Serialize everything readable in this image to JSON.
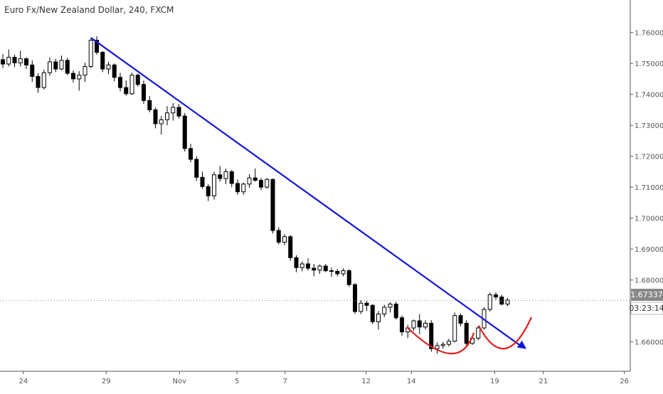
{
  "chart_data": {
    "type": "candlestick",
    "title": "Euro Fx/New Zealand Dollar, 240, FXCM",
    "timeframe_minutes": 240,
    "x_tick_labels": [
      "24",
      "29",
      "Nov",
      "5",
      "7",
      "12",
      "14",
      "19",
      "21",
      "26"
    ],
    "y_tick_labels": [
      "1.76000",
      "1.75000",
      "1.74000",
      "1.73000",
      "1.72000",
      "1.71000",
      "1.70000",
      "1.69000",
      "1.68000",
      "1.67000",
      "1.66000"
    ],
    "ylim": [
      1.6505,
      1.7705
    ],
    "current_price": "1.67337",
    "countdown": "03:23:14",
    "grid": false,
    "legend": "none",
    "series": [
      {
        "ohlc": [
          [
            1.7512,
            1.753,
            1.7485,
            1.7498
          ],
          [
            1.7498,
            1.7545,
            1.749,
            1.752
          ],
          [
            1.752,
            1.7528,
            1.7488,
            1.7502
          ],
          [
            1.7502,
            1.7541,
            1.749,
            1.7515
          ],
          [
            1.7515,
            1.752,
            1.7482,
            1.7495
          ],
          [
            1.7495,
            1.751,
            1.744,
            1.7458
          ],
          [
            1.7458,
            1.7468,
            1.7405,
            1.7422
          ],
          [
            1.7422,
            1.748,
            1.7415,
            1.747
          ],
          [
            1.747,
            1.752,
            1.746,
            1.7505
          ],
          [
            1.7505,
            1.7515,
            1.7472,
            1.7482
          ],
          [
            1.7482,
            1.7525,
            1.7478,
            1.751
          ],
          [
            1.751,
            1.7518,
            1.7462,
            1.7468
          ],
          [
            1.7468,
            1.7478,
            1.7438,
            1.745
          ],
          [
            1.745,
            1.7475,
            1.7412,
            1.7462
          ],
          [
            1.7462,
            1.7502,
            1.744,
            1.749
          ],
          [
            1.749,
            1.7582,
            1.7485,
            1.7575
          ],
          [
            1.7575,
            1.7588,
            1.7528,
            1.7536
          ],
          [
            1.7536,
            1.754,
            1.7472,
            1.7482
          ],
          [
            1.7482,
            1.7505,
            1.7465,
            1.7495
          ],
          [
            1.7495,
            1.75,
            1.7442,
            1.7455
          ],
          [
            1.7455,
            1.747,
            1.741,
            1.7422
          ],
          [
            1.7422,
            1.7445,
            1.7396,
            1.7402
          ],
          [
            1.7402,
            1.747,
            1.7398,
            1.7462
          ],
          [
            1.7462,
            1.7468,
            1.7425,
            1.7432
          ],
          [
            1.7432,
            1.7445,
            1.737,
            1.738
          ],
          [
            1.738,
            1.7395,
            1.7342,
            1.735
          ],
          [
            1.735,
            1.7358,
            1.729,
            1.7305
          ],
          [
            1.7305,
            1.733,
            1.727,
            1.7318
          ],
          [
            1.7318,
            1.7362,
            1.73,
            1.734
          ],
          [
            1.734,
            1.7372,
            1.7315,
            1.7358
          ],
          [
            1.7358,
            1.7368,
            1.7322,
            1.733
          ],
          [
            1.733,
            1.734,
            1.7215,
            1.7225
          ],
          [
            1.7225,
            1.724,
            1.718,
            1.719
          ],
          [
            1.719,
            1.72,
            1.712,
            1.7132
          ],
          [
            1.7132,
            1.715,
            1.7095,
            1.7102
          ],
          [
            1.7102,
            1.711,
            1.7055,
            1.7072
          ],
          [
            1.7072,
            1.715,
            1.706,
            1.714
          ],
          [
            1.714,
            1.7168,
            1.7118,
            1.7128
          ],
          [
            1.7128,
            1.716,
            1.711,
            1.715
          ],
          [
            1.715,
            1.7155,
            1.71,
            1.7112
          ],
          [
            1.7112,
            1.7125,
            1.7075,
            1.7085
          ],
          [
            1.7085,
            1.7115,
            1.7075,
            1.711
          ],
          [
            1.711,
            1.7142,
            1.7098,
            1.713
          ],
          [
            1.713,
            1.716,
            1.7118,
            1.7122
          ],
          [
            1.7122,
            1.713,
            1.709,
            1.71
          ],
          [
            1.71,
            1.713,
            1.7095,
            1.7125
          ],
          [
            1.7125,
            1.7128,
            1.695,
            1.696
          ],
          [
            1.696,
            1.697,
            1.6915,
            1.6922
          ],
          [
            1.6922,
            1.6948,
            1.6912,
            1.694
          ],
          [
            1.694,
            1.6945,
            1.6862,
            1.6872
          ],
          [
            1.6872,
            1.688,
            1.6825,
            1.684
          ],
          [
            1.684,
            1.686,
            1.6828,
            1.6852
          ],
          [
            1.6852,
            1.687,
            1.683,
            1.6838
          ],
          [
            1.6838,
            1.6852,
            1.6812,
            1.6832
          ],
          [
            1.6832,
            1.685,
            1.682,
            1.6845
          ],
          [
            1.6845,
            1.6852,
            1.6825,
            1.683
          ],
          [
            1.683,
            1.684,
            1.681,
            1.6828
          ],
          [
            1.6828,
            1.6835,
            1.6812,
            1.682
          ],
          [
            1.682,
            1.6838,
            1.6812,
            1.683
          ],
          [
            1.683,
            1.6835,
            1.6778,
            1.6785
          ],
          [
            1.6785,
            1.679,
            1.669,
            1.6698
          ],
          [
            1.6698,
            1.6735,
            1.669,
            1.6725
          ],
          [
            1.6725,
            1.6732,
            1.67,
            1.6718
          ],
          [
            1.6718,
            1.6722,
            1.6658,
            1.6665
          ],
          [
            1.6665,
            1.67,
            1.664,
            1.669
          ],
          [
            1.669,
            1.672,
            1.668,
            1.6712
          ],
          [
            1.6712,
            1.6728,
            1.6695,
            1.6722
          ],
          [
            1.6722,
            1.673,
            1.6672,
            1.6678
          ],
          [
            1.6678,
            1.6685,
            1.662,
            1.6632
          ],
          [
            1.6632,
            1.6655,
            1.6612,
            1.6645
          ],
          [
            1.6645,
            1.6672,
            1.6635,
            1.6668
          ],
          [
            1.6668,
            1.669,
            1.6625,
            1.6648
          ],
          [
            1.6648,
            1.667,
            1.664,
            1.666
          ],
          [
            1.666,
            1.667,
            1.6568,
            1.6578
          ],
          [
            1.6578,
            1.6598,
            1.6562,
            1.6588
          ],
          [
            1.6588,
            1.66,
            1.6578,
            1.6592
          ],
          [
            1.6592,
            1.661,
            1.6585,
            1.6602
          ],
          [
            1.6602,
            1.6695,
            1.6598,
            1.6685
          ],
          [
            1.6685,
            1.6692,
            1.665,
            1.666
          ],
          [
            1.666,
            1.667,
            1.6585,
            1.6595
          ],
          [
            1.6595,
            1.662,
            1.659,
            1.6612
          ],
          [
            1.6612,
            1.6652,
            1.6605,
            1.6645
          ],
          [
            1.6645,
            1.6712,
            1.664,
            1.6705
          ],
          [
            1.6705,
            1.676,
            1.6698,
            1.6752
          ],
          [
            1.6752,
            1.676,
            1.6736,
            1.6745
          ],
          [
            1.6745,
            1.6752,
            1.6718,
            1.6722
          ],
          [
            1.6722,
            1.6742,
            1.6715,
            1.6735
          ]
        ]
      }
    ],
    "annotations": {
      "trendline_color": "#1515d6",
      "curve_color": "#e02020",
      "trendline_start_price": 1.7583,
      "trendline_end_price": 1.6577
    },
    "colors": {
      "up": "#ffffff",
      "down": "#000000",
      "wick": "#000000",
      "axis_text": "#555555"
    }
  }
}
